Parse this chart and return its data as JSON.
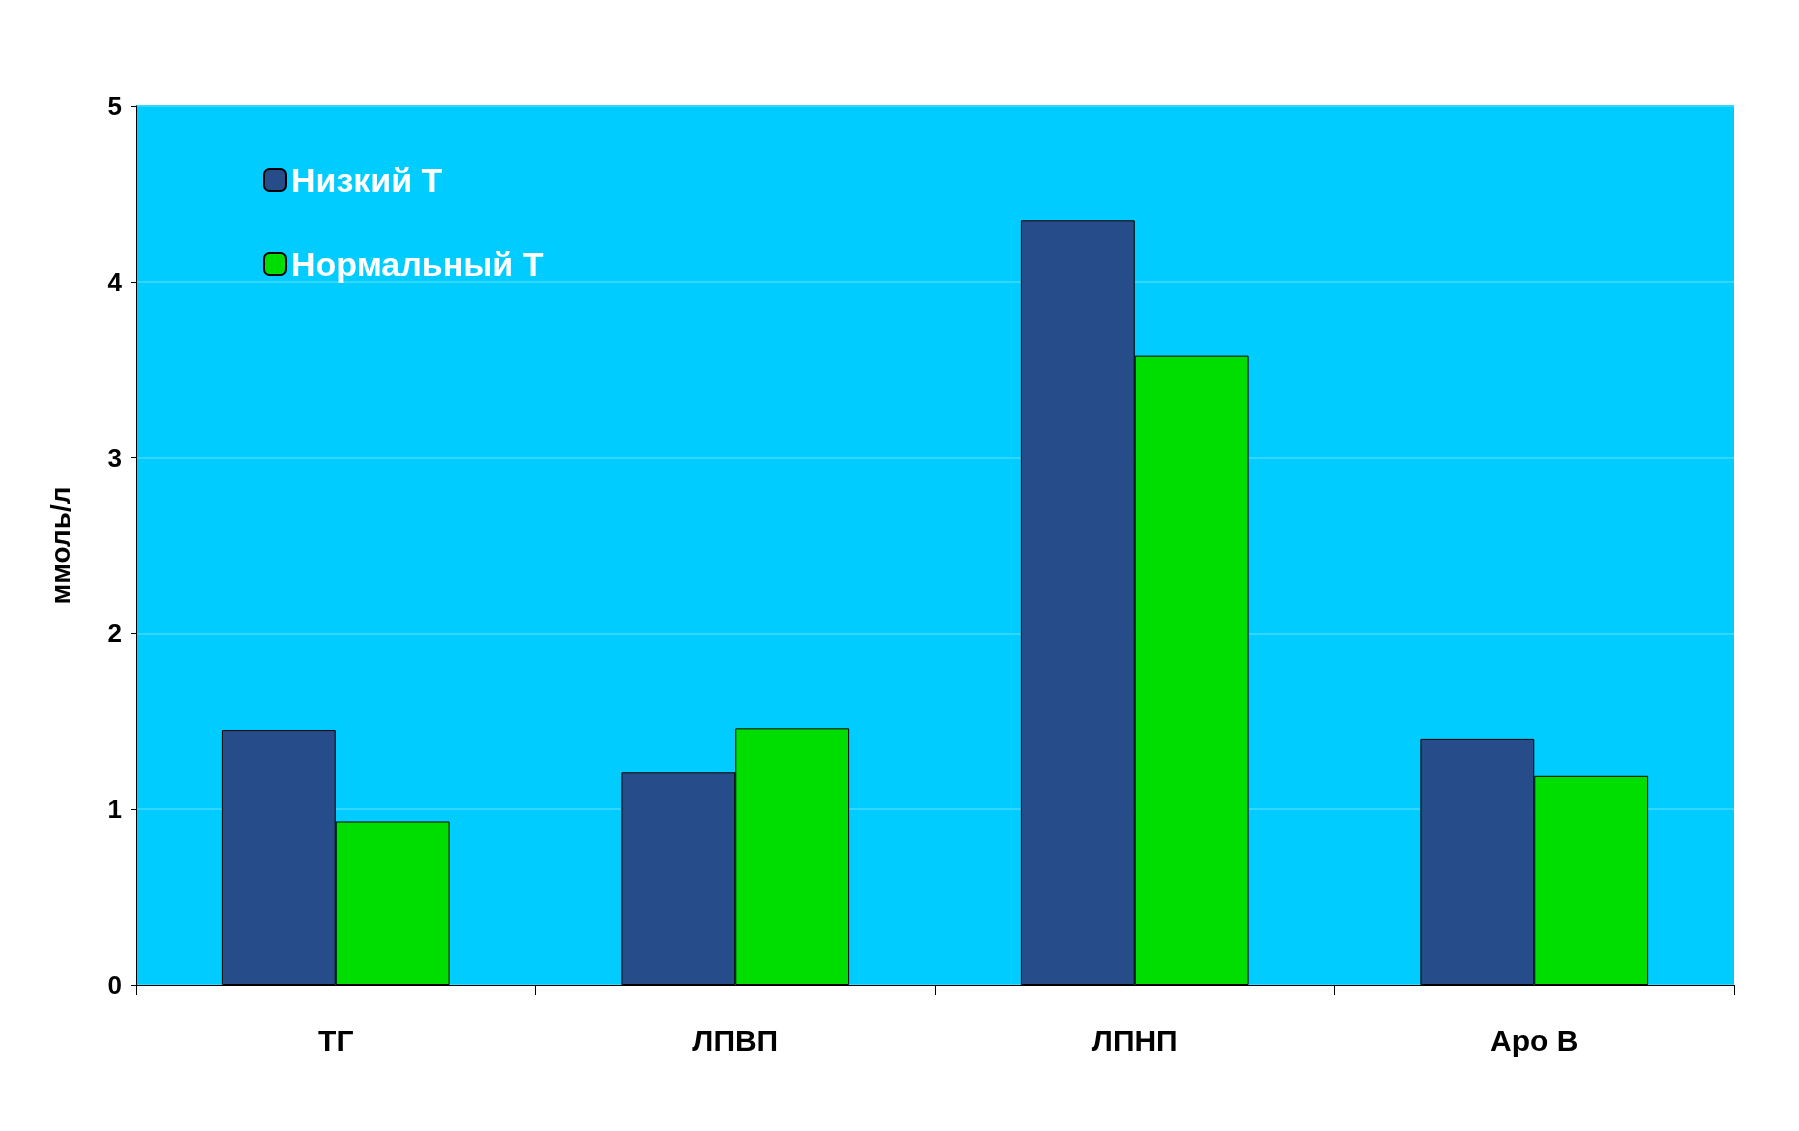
{
  "chart_data": {
    "type": "bar",
    "ylabel": "ммоль/л",
    "categories": [
      "ТГ",
      "ЛПВП",
      "ЛПНП",
      "Apo B"
    ],
    "series": [
      {
        "name": "Низкий Т",
        "color": "#264d8a",
        "values": [
          1.45,
          1.21,
          4.35,
          1.4
        ]
      },
      {
        "name": "Нормальный Т",
        "color": "#00dd00",
        "values": [
          0.93,
          1.46,
          3.58,
          1.19
        ]
      }
    ],
    "ylim": [
      0,
      5
    ],
    "yticks": [
      0,
      1,
      2,
      3,
      4,
      5
    ],
    "grid": "y",
    "legend": "top left"
  }
}
